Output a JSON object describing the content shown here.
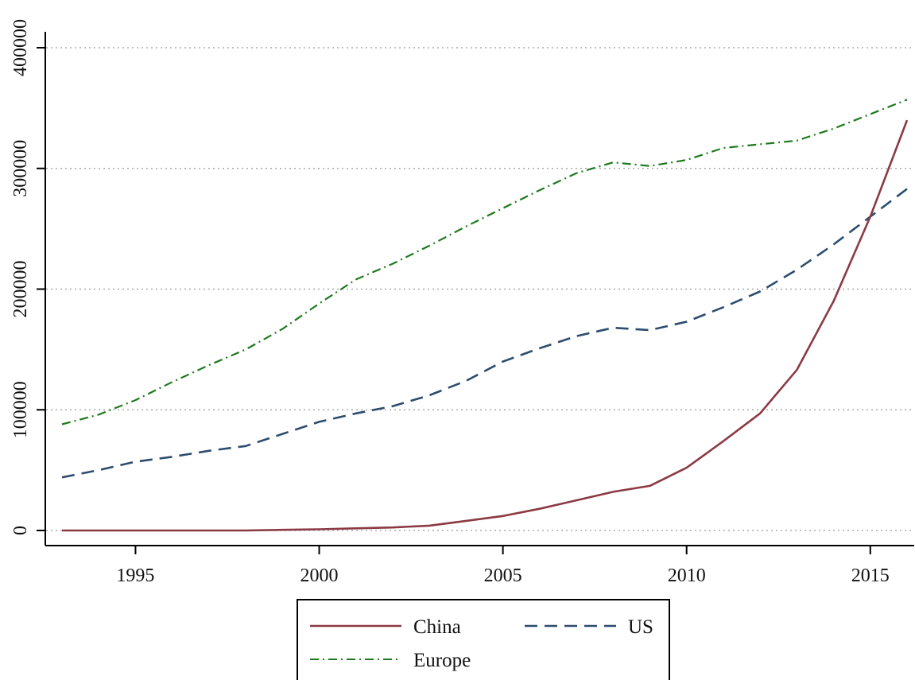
{
  "chart_data": {
    "type": "line",
    "title": "",
    "xlabel": "",
    "ylabel": "",
    "xlim": [
      1993,
      2016
    ],
    "ylim": [
      0,
      400000
    ],
    "x_ticks": [
      1995,
      2000,
      2005,
      2010,
      2015
    ],
    "x_tick_labels": [
      "1995",
      "2000",
      "2005",
      "2010",
      "2015"
    ],
    "y_ticks": [
      0,
      100000,
      200000,
      300000,
      400000
    ],
    "y_tick_labels": [
      "0",
      "100000",
      "200000",
      "300000",
      "400000"
    ],
    "grid": "horizontal dotted",
    "legend_position": "bottom",
    "x": [
      1993,
      1994,
      1995,
      1996,
      1997,
      1998,
      1999,
      2000,
      2001,
      2002,
      2003,
      2004,
      2005,
      2006,
      2007,
      2008,
      2009,
      2010,
      2011,
      2012,
      2013,
      2014,
      2015,
      2016
    ],
    "series": [
      {
        "name": "China",
        "color": "#8b3a44",
        "style": "solid",
        "values": [
          0,
          0,
          0,
          0,
          0,
          0,
          500,
          1000,
          1800,
          2500,
          4000,
          8000,
          12000,
          18000,
          25000,
          32000,
          37000,
          52000,
          74000,
          97000,
          133000,
          190000,
          260000,
          340000
        ]
      },
      {
        "name": "US",
        "color": "#2d4d6e",
        "style": "dash",
        "values": [
          44000,
          50000,
          57000,
          61000,
          66000,
          70000,
          80000,
          90000,
          97000,
          103000,
          112000,
          124000,
          140000,
          151000,
          161000,
          168000,
          166000,
          173000,
          185000,
          198000,
          216000,
          237000,
          260000,
          283000
        ]
      },
      {
        "name": "Europe",
        "color": "#1e7a1e",
        "style": "dashdot",
        "values": [
          88000,
          96000,
          108000,
          123000,
          137000,
          150000,
          167000,
          188000,
          208000,
          221000,
          236000,
          252000,
          267000,
          282000,
          296000,
          305000,
          302000,
          307000,
          317000,
          320000,
          323000,
          333000,
          345000,
          357000
        ]
      }
    ]
  }
}
